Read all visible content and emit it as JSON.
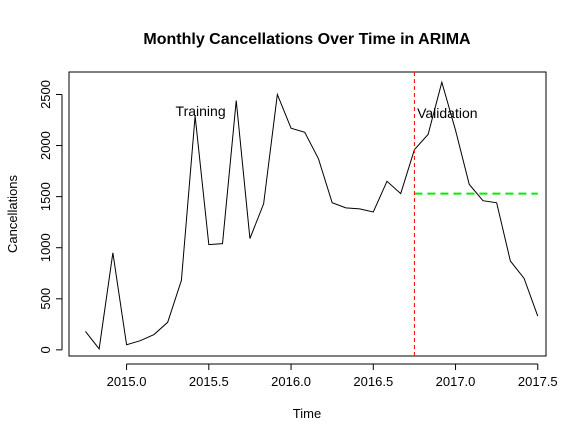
{
  "chart_data": {
    "type": "line",
    "title": "Monthly Cancellations Over Time in ARIMA",
    "xlabel": "Time",
    "ylabel": "Cancellations",
    "xlim": [
      2014.65,
      2017.55
    ],
    "ylim": [
      -60,
      2720
    ],
    "x_ticks": [
      2015.0,
      2015.5,
      2016.0,
      2016.5,
      2017.0,
      2017.5
    ],
    "x_tick_labels": [
      "2015.0",
      "2015.5",
      "2016.0",
      "2016.5",
      "2017.0",
      "2017.5"
    ],
    "y_ticks": [
      0,
      500,
      1000,
      1500,
      2000,
      2500
    ],
    "y_tick_labels": [
      "0",
      "500",
      "1000",
      "1500",
      "2000",
      "2500"
    ],
    "grid": false,
    "series": [
      {
        "role": "actual",
        "color": "#000000",
        "x": [
          2014.75,
          2014.8333,
          2014.9167,
          2015.0,
          2015.0833,
          2015.1667,
          2015.25,
          2015.3333,
          2015.4167,
          2015.5,
          2015.5833,
          2015.6667,
          2015.75,
          2015.8333,
          2015.9167,
          2016.0,
          2016.0833,
          2016.1667,
          2016.25,
          2016.3333,
          2016.4167,
          2016.5,
          2016.5833,
          2016.6667,
          2016.75,
          2016.8333,
          2016.9167,
          2017.0,
          2017.0833,
          2017.1667,
          2017.25,
          2017.3333,
          2017.4167,
          2017.5
        ],
        "y": [
          180,
          10,
          950,
          50,
          90,
          150,
          270,
          680,
          2290,
          1030,
          1040,
          2440,
          1090,
          1430,
          2500,
          2170,
          2130,
          1870,
          1440,
          1390,
          1380,
          1350,
          1650,
          1530,
          1960,
          2110,
          2620,
          2150,
          1620,
          1460,
          1440,
          870,
          700,
          330
        ]
      },
      {
        "role": "forecast",
        "color": "#00ee00",
        "style": "dashed",
        "x": [
          2016.75,
          2017.5
        ],
        "y": [
          1530,
          1530
        ]
      }
    ],
    "split_line": {
      "x": 2016.75,
      "color": "#ff0000",
      "style": "dashed"
    },
    "annotations": [
      {
        "text": "Training",
        "x": 2015.45,
        "y": 2340
      },
      {
        "text": "Validation",
        "x": 2016.95,
        "y": 2320
      }
    ]
  }
}
